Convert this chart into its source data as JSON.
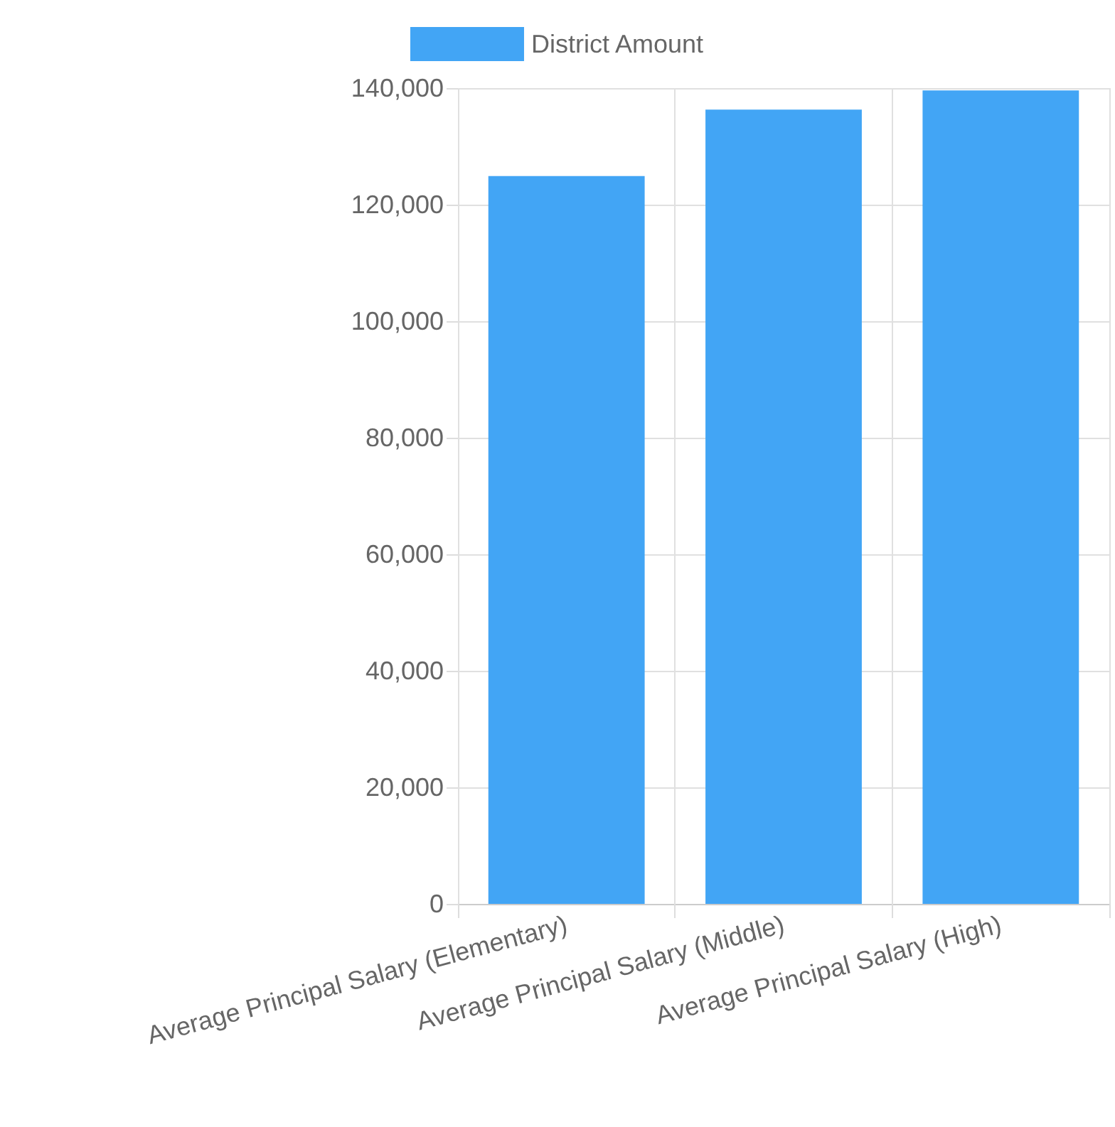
{
  "chart_data": {
    "type": "bar",
    "categories": [
      "Average Principal Salary (Elementary)",
      "Average Principal Salary (Middle)",
      "Average Principal Salary (High)"
    ],
    "series": [
      {
        "name": "District Amount",
        "color": "#42a5f5",
        "values": [
          124900,
          136300,
          139600
        ]
      }
    ],
    "ylim": [
      0,
      140000
    ],
    "yticks": [
      0,
      {
        "value": 20000,
        "label": "20,000"
      },
      {
        "value": 40000,
        "label": "40,000"
      },
      {
        "value": 60000,
        "label": "60,000"
      },
      {
        "value": 80000,
        "label": "80,000"
      },
      {
        "value": 100000,
        "label": "100,000"
      },
      {
        "value": 120000,
        "label": "120,000"
      },
      {
        "value": 140000,
        "label": "140,000"
      }
    ],
    "grid": true,
    "legend": "top"
  }
}
